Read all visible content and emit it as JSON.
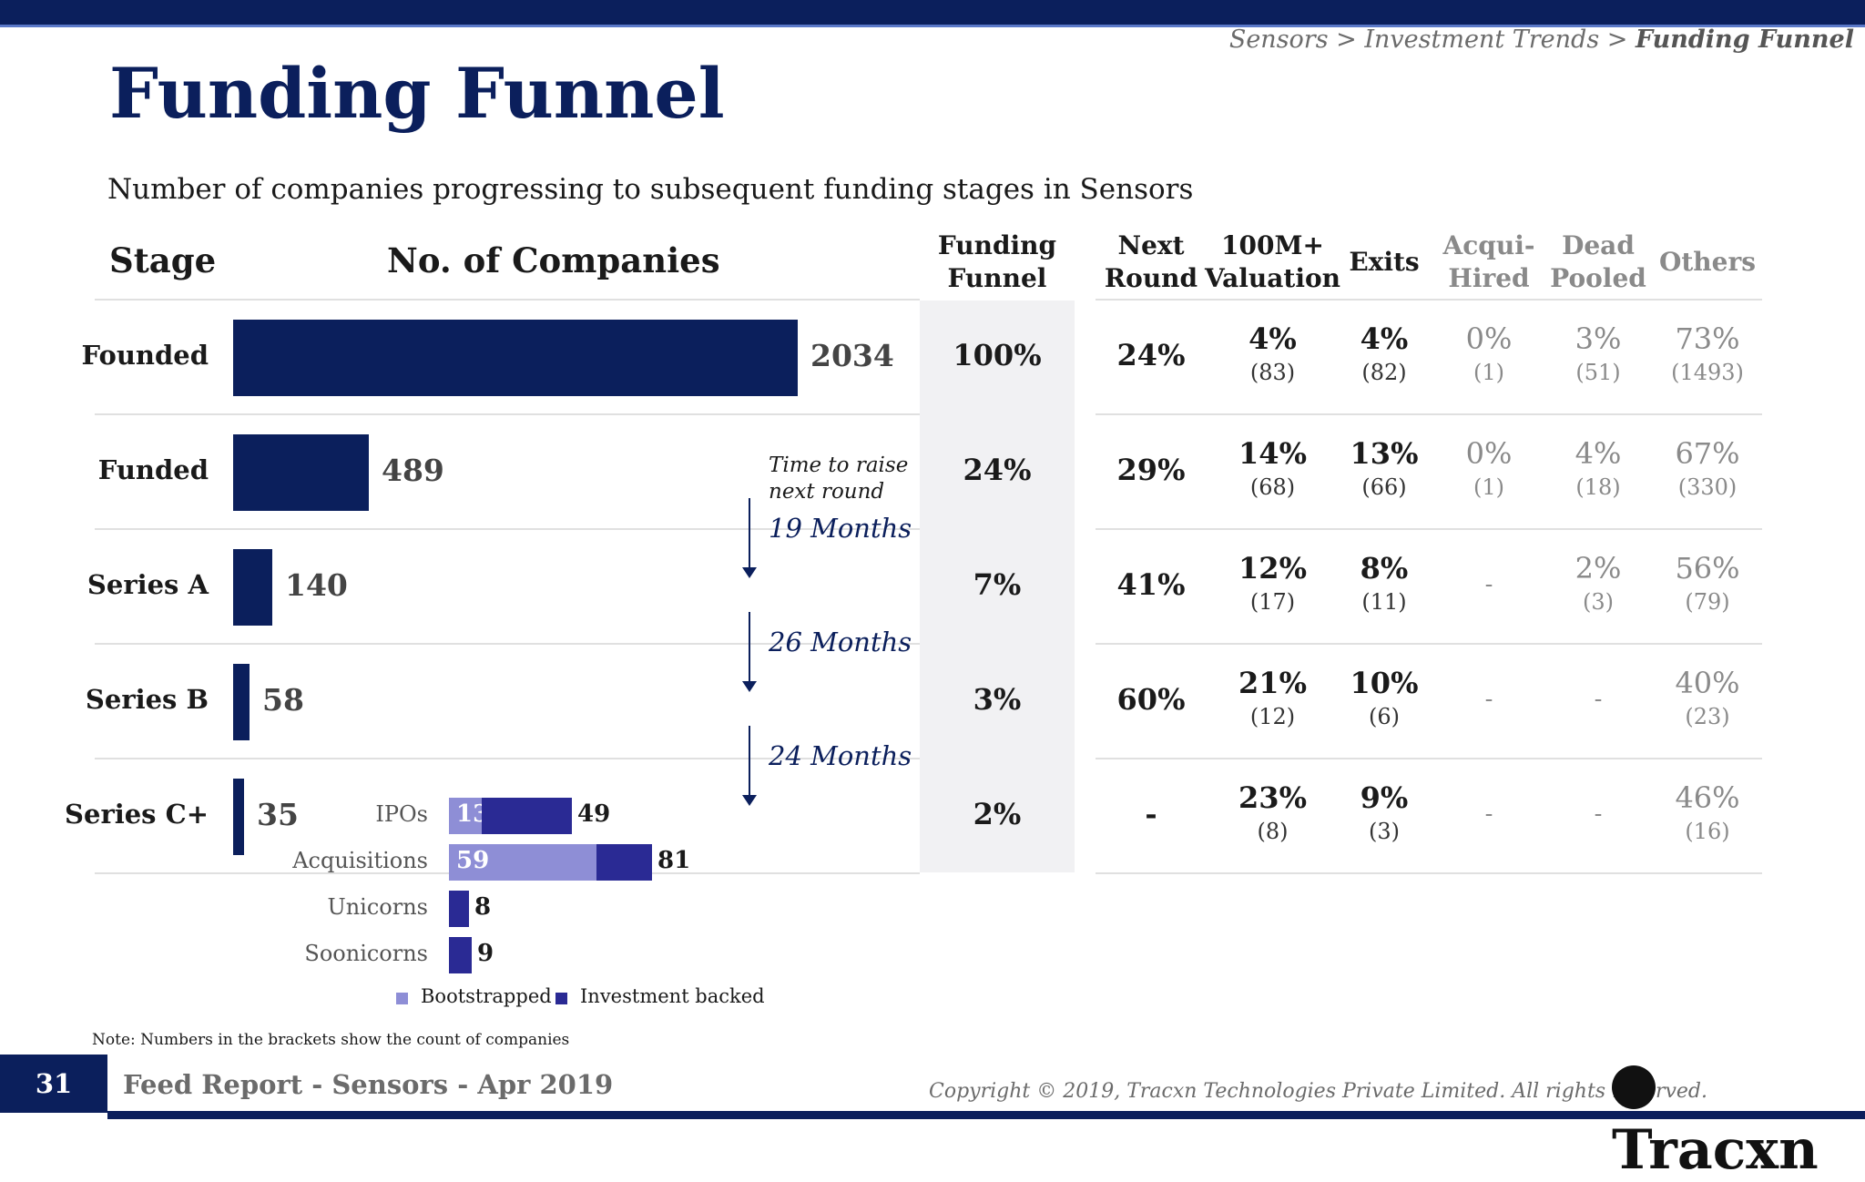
{
  "header": {
    "breadcrumb_1": "Sensors > Investment Trends > ",
    "breadcrumb_2": "Funding Funnel",
    "title": "Funding Funnel",
    "subtitle": "Number of companies progressing to subsequent funding stages in Sensors"
  },
  "columns": {
    "stage": "Stage",
    "companies": "No. of Companies",
    "funnel_1": "Funding",
    "funnel_2": "Funnel",
    "next_1": "Next",
    "next_2": "Round",
    "val_1": "100M+",
    "val_2": "Valuation",
    "exits": "Exits",
    "acq_1": "Acqui-",
    "acq_2": "Hired",
    "dead_1": "Dead",
    "dead_2": "Pooled",
    "others": "Others"
  },
  "rows": [
    {
      "stage": "Founded",
      "value": "2034",
      "funnel": "100%",
      "next": "24%",
      "val_pct": "4%",
      "val_cnt": "(83)",
      "exit_pct": "4%",
      "exit_cnt": "(82)",
      "acq_pct": "0%",
      "acq_cnt": "(1)",
      "dead_pct": "3%",
      "dead_cnt": "(51)",
      "oth_pct": "73%",
      "oth_cnt": "(1493)"
    },
    {
      "stage": "Funded",
      "value": "489",
      "funnel": "24%",
      "next": "29%",
      "val_pct": "14%",
      "val_cnt": "(68)",
      "exit_pct": "13%",
      "exit_cnt": "(66)",
      "acq_pct": "0%",
      "acq_cnt": "(1)",
      "dead_pct": "4%",
      "dead_cnt": "(18)",
      "oth_pct": "67%",
      "oth_cnt": "(330)"
    },
    {
      "stage": "Series A",
      "value": "140",
      "funnel": "7%",
      "next": "41%",
      "val_pct": "12%",
      "val_cnt": "(17)",
      "exit_pct": "8%",
      "exit_cnt": "(11)",
      "acq_pct": "-",
      "acq_cnt": "",
      "dead_pct": "2%",
      "dead_cnt": "(3)",
      "oth_pct": "56%",
      "oth_cnt": "(79)"
    },
    {
      "stage": "Series B",
      "value": "58",
      "funnel": "3%",
      "next": "60%",
      "val_pct": "21%",
      "val_cnt": "(12)",
      "exit_pct": "10%",
      "exit_cnt": "(6)",
      "acq_pct": "-",
      "acq_cnt": "",
      "dead_pct": "-",
      "dead_cnt": "",
      "oth_pct": "40%",
      "oth_cnt": "(23)"
    },
    {
      "stage": "Series C+",
      "value": "35",
      "funnel": "2%",
      "next": "-",
      "val_pct": "23%",
      "val_cnt": "(8)",
      "exit_pct": "9%",
      "exit_cnt": "(3)",
      "acq_pct": "-",
      "acq_cnt": "",
      "dead_pct": "-",
      "dead_cnt": "",
      "oth_pct": "46%",
      "oth_cnt": "(16)"
    }
  ],
  "time_to_raise": {
    "note_1": "Time to raise",
    "note_2": "next round",
    "values": [
      "19 Months",
      "26 Months",
      "24 Months"
    ]
  },
  "exits_breakdown": [
    {
      "label": "IPOs",
      "bootstrapped": "13",
      "total": "49"
    },
    {
      "label": "Acquisitions",
      "bootstrapped": "59",
      "total": "81"
    },
    {
      "label": "Unicorns",
      "bootstrapped": "",
      "total": "8"
    },
    {
      "label": "Soonicorns",
      "bootstrapped": "",
      "total": "9"
    }
  ],
  "legend": {
    "bootstrapped": "Bootstrapped",
    "investment": "Investment backed"
  },
  "note": "Note: Numbers in the brackets show the count of companies",
  "footer": {
    "page": "31",
    "report": "Feed Report - Sensors - Apr 2019",
    "copyright": "Copyright © 2019, Tracxn Technologies Private Limited. All rights reserved.",
    "logo": "Tracxn"
  },
  "colors": {
    "primary": "#0b1f5c",
    "bootstrapped": "#8e8ed6",
    "investment": "#2a2a94",
    "funnel_bg": "#f1f1f3"
  },
  "chart_data": [
    {
      "type": "bar",
      "categories": [
        "Founded",
        "Funded",
        "Series A",
        "Series B",
        "Series C+"
      ],
      "values": [
        2034,
        489,
        140,
        58,
        35
      ]
    },
    {
      "type": "bar",
      "categories": [
        "IPOs",
        "Acquisitions",
        "Unicorns",
        "Soonicorns"
      ],
      "series": [
        {
          "name": "Bootstrapped",
          "values": [
            13,
            59,
            0,
            0
          ]
        },
        {
          "name": "Investment backed",
          "values": [
            36,
            22,
            8,
            9
          ]
        }
      ]
    }
  ]
}
